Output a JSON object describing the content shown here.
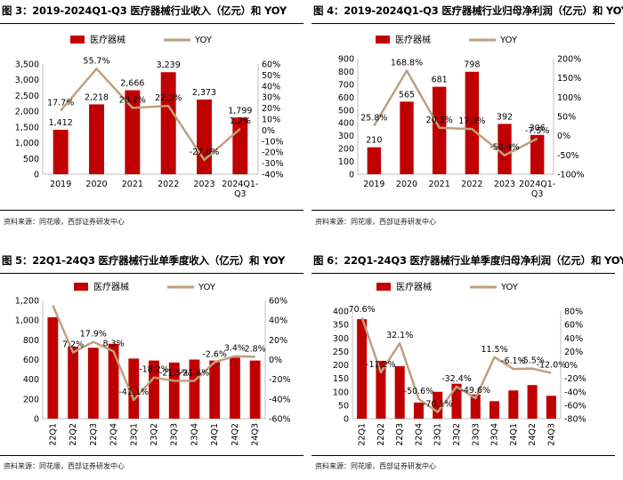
{
  "colors": {
    "bar": "#C00000",
    "line": "#BEA07E",
    "axis": "#BFBFBF"
  },
  "source_note": "资料来源：同花顺，西部证券研发中心",
  "chart_data": [
    {
      "type": "bar",
      "title": "图 3：2019-2024Q1-Q3 医疗器械行业收入（亿元）和 YOY",
      "legend": [
        "医疗器械",
        "YOY"
      ],
      "categories": [
        "2019",
        "2020",
        "2021",
        "2022",
        "2023",
        "2024Q1-\nQ3"
      ],
      "series": [
        {
          "name": "医疗器械",
          "values": [
            1412,
            2218,
            2666,
            3239,
            2373,
            1799
          ],
          "labels": [
            "1,412",
            "2,218",
            "2,666",
            "3,239",
            "2,373",
            "1,799"
          ]
        },
        {
          "name": "YOY",
          "values": [
            17.7,
            55.7,
            20.2,
            22.0,
            -27.0,
            1.2
          ],
          "labels": [
            "17.7%",
            "55.7%",
            "20.2%",
            "22.0%",
            "-27.0%",
            "1.2%"
          ]
        }
      ],
      "ylim": [
        0,
        3500
      ],
      "yticks": [
        "0",
        "500",
        "1,000",
        "1,500",
        "2,000",
        "2,500",
        "3,000",
        "3,500"
      ],
      "y2lim": [
        -40,
        60
      ],
      "y2ticks": [
        "-40%",
        "-30%",
        "-20%",
        "-10%",
        "0%",
        "10%",
        "20%",
        "30%",
        "40%",
        "50%",
        "60%"
      ]
    },
    {
      "type": "bar",
      "title": "图 4：2019-2024Q1-Q3 医疗器械行业归母净利润（亿元）和 YOY",
      "legend": [
        "医疗器械",
        "YOY"
      ],
      "categories": [
        "2019",
        "2020",
        "2021",
        "2022",
        "2023",
        "2024Q1-\nQ3"
      ],
      "series": [
        {
          "name": "医疗器械",
          "values": [
            210,
            565,
            681,
            798,
            392,
            306
          ],
          "labels": [
            "210",
            "565",
            "681",
            "798",
            "392",
            "306"
          ]
        },
        {
          "name": "YOY",
          "values": [
            25.8,
            168.8,
            20.5,
            17.3,
            -50.9,
            -7.5
          ],
          "labels": [
            "25.8%",
            "168.8%",
            "20.5%",
            "17.3%",
            "-50.9%",
            "-7.5%"
          ]
        }
      ],
      "ylim": [
        0,
        900
      ],
      "yticks": [
        "0",
        "100",
        "200",
        "300",
        "400",
        "500",
        "600",
        "700",
        "800",
        "900"
      ],
      "y2lim": [
        -100,
        200
      ],
      "y2ticks": [
        "-100%",
        "-50%",
        "0%",
        "50%",
        "100%",
        "150%",
        "200%"
      ]
    },
    {
      "type": "bar",
      "title": "图 5：22Q1-24Q3 医疗器械行业单季度收入（亿元）和 YOY",
      "legend": [
        "医疗器械",
        "YOY"
      ],
      "categories": [
        "22Q1",
        "22Q2",
        "22Q3",
        "22Q4",
        "23Q1",
        "23Q2",
        "23Q3",
        "23Q4",
        "24Q1",
        "24Q2",
        "24Q3"
      ],
      "series": [
        {
          "name": "医疗器械",
          "values": [
            1030,
            730,
            720,
            760,
            610,
            590,
            570,
            600,
            590,
            620,
            590
          ]
        },
        {
          "name": "YOY",
          "values": [
            55,
            7.2,
            17.9,
            8.3,
            -41.1,
            -18.2,
            -21.5,
            -21.6,
            -2.6,
            3.4,
            2.8
          ],
          "labels": [
            "",
            "7.2%",
            "17.9%",
            "8.3%",
            "-41.1%",
            "-18.2%",
            "-21.5%",
            "-21.6%",
            "-2.6%",
            "3.4%",
            "2.8%"
          ]
        }
      ],
      "ylim": [
        0,
        1200
      ],
      "yticks": [
        "0",
        "200",
        "400",
        "600",
        "800",
        "1,000",
        "1,200"
      ],
      "y2lim": [
        -60,
        60
      ],
      "y2ticks": [
        "-60%",
        "-40%",
        "-20%",
        "0%",
        "20%",
        "40%",
        "60%"
      ]
    },
    {
      "type": "bar",
      "title": "图 6：22Q1-24Q3 医疗器械行业单季度归母净利润（亿元）和 YOY",
      "legend": [
        "医疗器械",
        "YOY"
      ],
      "categories": [
        "22Q1",
        "22Q2",
        "22Q3",
        "22Q4",
        "23Q1",
        "23Q2",
        "23Q3",
        "23Q4",
        "24Q1",
        "24Q2",
        "24Q3"
      ],
      "series": [
        {
          "name": "医疗器械",
          "values": [
            370,
            215,
            195,
            60,
            100,
            130,
            90,
            65,
            105,
            125,
            85
          ]
        },
        {
          "name": "YOY",
          "values": [
            70.6,
            -11.2,
            32.1,
            -50.6,
            -70.1,
            -32.4,
            -49.6,
            11.5,
            -6.1,
            -5.5,
            -12.0
          ],
          "labels": [
            "70.6%",
            "-11.2%",
            "32.1%",
            "-50.6%",
            "-70.1%",
            "-32.4%",
            "-49.6%",
            "11.5%",
            "-6.1%",
            "-5.5%",
            "-12.0%"
          ]
        }
      ],
      "ylim": [
        0,
        400
      ],
      "yticks": [
        "0",
        "50",
        "100",
        "150",
        "200",
        "250",
        "300",
        "350",
        "400"
      ],
      "y2lim": [
        -80,
        80
      ],
      "y2ticks": [
        "-80%",
        "-60%",
        "-40%",
        "-20%",
        "0%",
        "20%",
        "40%",
        "60%",
        "80%"
      ]
    }
  ]
}
